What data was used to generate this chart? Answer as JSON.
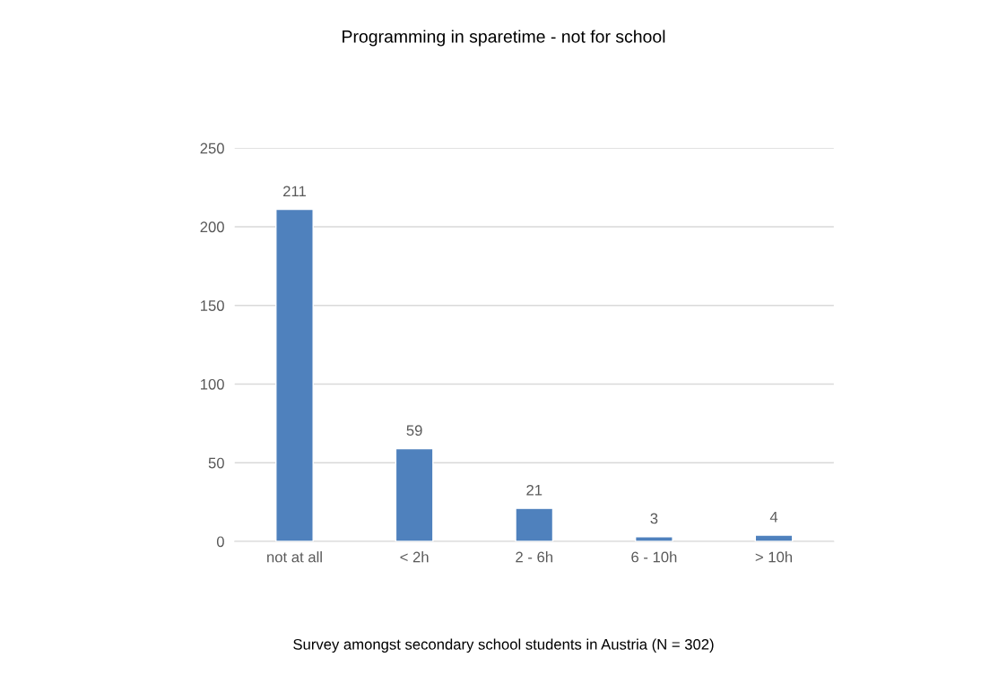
{
  "chart_data": {
    "type": "bar",
    "title": "Programming in sparetime - not for school",
    "categories": [
      "not at all",
      "< 2h",
      "2 - 6h",
      "6 - 10h",
      "> 10h"
    ],
    "values": [
      211,
      59,
      21,
      3,
      4
    ],
    "color": "#4f81bd",
    "ylim": [
      0,
      250
    ],
    "yticks": [
      0,
      50,
      100,
      150,
      200,
      250
    ],
    "grid": "y",
    "data_labels": true,
    "legend": false,
    "annotations": [
      "Survey amongst secondary school students in Austria (N = 302)"
    ]
  }
}
